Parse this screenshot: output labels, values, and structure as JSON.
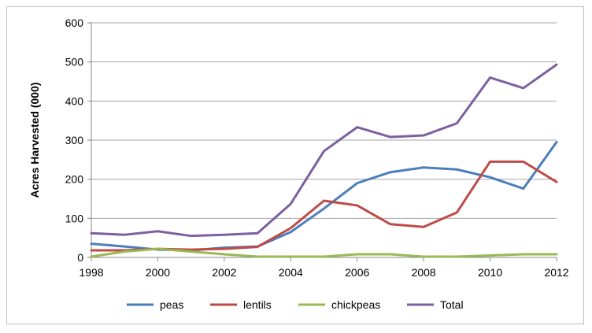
{
  "chart_data": {
    "type": "line",
    "ylabel": "Acres Harvested (000)",
    "xlim": [
      1998,
      2012
    ],
    "ylim": [
      0,
      600
    ],
    "x_ticks": [
      "1998",
      "2000",
      "2002",
      "2004",
      "2006",
      "2008",
      "2010",
      "2012"
    ],
    "y_ticks": [
      "0",
      "100",
      "200",
      "300",
      "400",
      "500",
      "600"
    ],
    "grid": true,
    "legend_position": "bottom",
    "x": [
      1998,
      1999,
      2000,
      2001,
      2002,
      2003,
      2004,
      2005,
      2006,
      2007,
      2008,
      2009,
      2010,
      2011,
      2012
    ],
    "series": [
      {
        "name": "peas",
        "color": "#4a7ebb",
        "values": [
          35,
          28,
          20,
          18,
          25,
          28,
          65,
          125,
          190,
          218,
          230,
          225,
          205,
          176,
          295
        ]
      },
      {
        "name": "lentils",
        "color": "#be4b48",
        "values": [
          18,
          18,
          22,
          20,
          22,
          27,
          75,
          145,
          133,
          85,
          78,
          115,
          245,
          245,
          193
        ]
      },
      {
        "name": "chickpeas",
        "color": "#98b954",
        "values": [
          2,
          15,
          22,
          15,
          8,
          2,
          2,
          2,
          8,
          8,
          2,
          2,
          5,
          8,
          8
        ]
      },
      {
        "name": "Total",
        "color": "#7d5fa0",
        "values": [
          62,
          58,
          67,
          55,
          58,
          62,
          137,
          272,
          333,
          308,
          312,
          343,
          460,
          433,
          493
        ]
      }
    ]
  }
}
